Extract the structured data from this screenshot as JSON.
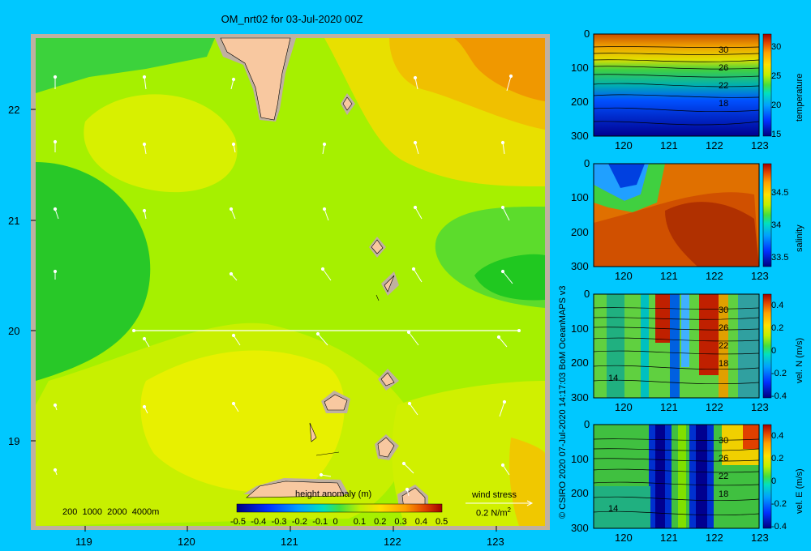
{
  "title": "OM_nrt02 for 03-Jul-2020 00Z",
  "map": {
    "lat_ticks": [
      "22",
      "21",
      "20",
      "19"
    ],
    "lon_ticks": [
      "119",
      "120",
      "121",
      "122",
      "123"
    ],
    "depth_legend": [
      "200",
      "1000",
      "2000",
      "4000m"
    ],
    "colorbar_label": "height anomaly (m)",
    "colorbar_ticks": [
      "-0.5",
      "-0.4",
      "-0.3",
      "-0.2",
      "-0.1",
      "0",
      "0.1",
      "0.2",
      "0.3",
      "0.4",
      "0.5"
    ],
    "wind_label": "wind stress",
    "wind_scale": "0.2 N/m",
    "wind_scale_sup": "2",
    "section_lat": 20
  },
  "credit": "© CSIRO 2020   07-Jul-2020 14:17:03 BoM OceanMAPS v3",
  "panels": [
    {
      "label": "temperature",
      "colorbar_ticks": [
        "30",
        "25",
        "20",
        "15"
      ],
      "depth_ticks": [
        "0",
        "100",
        "200",
        "300"
      ],
      "lon_ticks": [
        "120",
        "121",
        "122",
        "123"
      ],
      "contour_labels": [
        "30",
        "26",
        "22",
        "18"
      ]
    },
    {
      "label": "salinity",
      "colorbar_ticks": [
        "34.5",
        "34",
        "33.5"
      ],
      "depth_ticks": [
        "0",
        "100",
        "200",
        "300"
      ],
      "lon_ticks": [
        "120",
        "121",
        "122",
        "123"
      ],
      "contour_labels": []
    },
    {
      "label": "vel. N (m/s)",
      "colorbar_ticks": [
        "0.4",
        "0.2",
        "0",
        "-0.2",
        "-0.4"
      ],
      "depth_ticks": [
        "0",
        "100",
        "200",
        "300"
      ],
      "lon_ticks": [
        "120",
        "121",
        "122",
        "123"
      ],
      "contour_labels": [
        "30",
        "26",
        "22",
        "18",
        "14"
      ]
    },
    {
      "label": "vel. E (m/s)",
      "colorbar_ticks": [
        "0.4",
        "0.2",
        "0",
        "-0.2",
        "-0.4"
      ],
      "depth_ticks": [
        "0",
        "100",
        "200",
        "300"
      ],
      "lon_ticks": [
        "120",
        "121",
        "122",
        "123"
      ],
      "contour_labels": [
        "30",
        "26",
        "22",
        "18",
        "14"
      ]
    }
  ],
  "colors": {
    "background": "#00c8ff",
    "land": "#f8c8a0",
    "shelf": "#c0b0a0",
    "field_low": "#20c820",
    "field_mid": "#a0f000",
    "field_high": "#f0a000"
  }
}
